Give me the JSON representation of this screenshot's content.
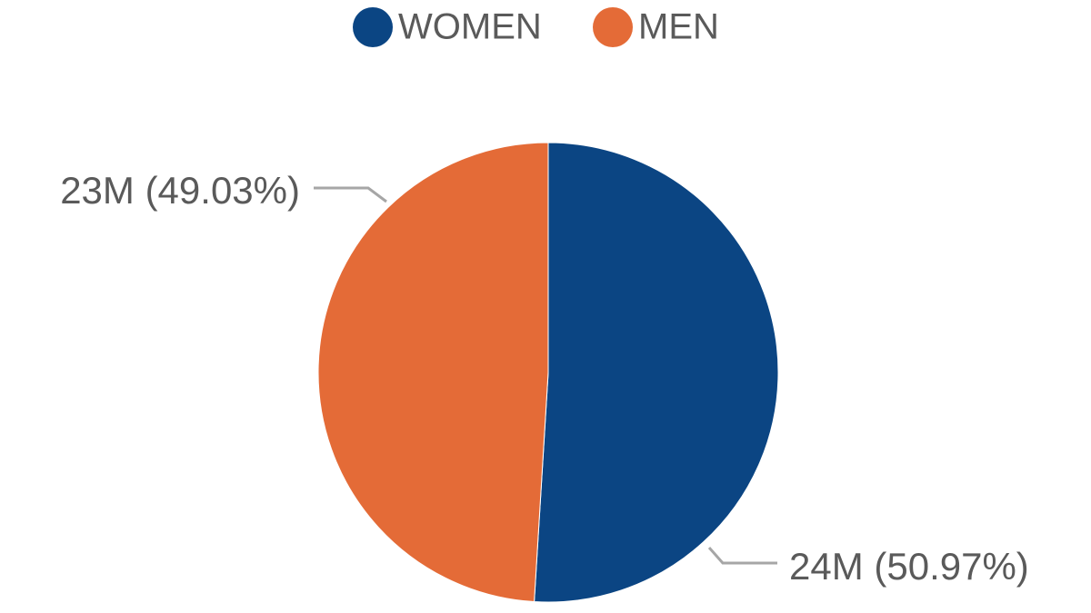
{
  "chart_data": {
    "type": "pie",
    "categories": [
      "WOMEN",
      "MEN"
    ],
    "values": [
      50.97,
      49.03
    ],
    "value_labels": [
      "24M (50.97%)",
      "23M (49.03%)"
    ],
    "colors": [
      "#0b4583",
      "#e46b37"
    ],
    "legend": "top"
  }
}
